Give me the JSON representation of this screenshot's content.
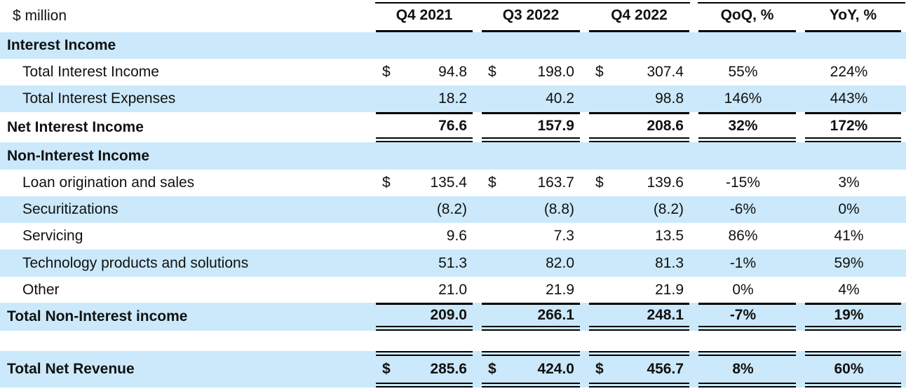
{
  "table": {
    "units_label": "$ million",
    "columns": [
      "Q4 2021",
      "Q3 2022",
      "Q4 2022",
      "QoQ, %",
      "YoY, %"
    ],
    "rows": [
      {
        "label": "Interest Income"
      },
      {
        "label": "Total Interest Income",
        "dollar": "$",
        "q1": "94.8",
        "q2": "198.0",
        "q3": "307.4",
        "qoq": "55%",
        "yoy": "224%"
      },
      {
        "label": "Total Interest Expenses",
        "q1": "18.2",
        "q2": "40.2",
        "q3": "98.8",
        "qoq": "146%",
        "yoy": "443%"
      },
      {
        "label": "Net Interest Income",
        "q1": "76.6",
        "q2": "157.9",
        "q3": "208.6",
        "qoq": "32%",
        "yoy": "172%"
      },
      {
        "label": "Non-Interest Income"
      },
      {
        "label": "Loan origination and sales",
        "dollar": "$",
        "q1": "135.4",
        "q2": "163.7",
        "q3": "139.6",
        "qoq": "-15%",
        "yoy": "3%"
      },
      {
        "label": "Securitizations",
        "q1": "(8.2)",
        "q2": "(8.8)",
        "q3": "(8.2)",
        "qoq": "-6%",
        "yoy": "0%"
      },
      {
        "label": "Servicing",
        "q1": "9.6",
        "q2": "7.3",
        "q3": "13.5",
        "qoq": "86%",
        "yoy": "41%"
      },
      {
        "label": "Technology products and solutions",
        "q1": "51.3",
        "q2": "82.0",
        "q3": "81.3",
        "qoq": "-1%",
        "yoy": "59%"
      },
      {
        "label": "Other",
        "q1": "21.0",
        "q2": "21.9",
        "q3": "21.9",
        "qoq": "0%",
        "yoy": "4%"
      },
      {
        "label": "Total Non-Interest income",
        "q1": "209.0",
        "q2": "266.1",
        "q3": "248.1",
        "qoq": "-7%",
        "yoy": "19%"
      },
      {
        "label": "Total Net Revenue",
        "dollar": "$",
        "q1": "285.6",
        "q2": "424.0",
        "q3": "456.7",
        "qoq": "8%",
        "yoy": "60%"
      }
    ],
    "colors": {
      "row_highlight": "#cbe9fa",
      "text": "#111111",
      "rule": "#000000"
    }
  }
}
